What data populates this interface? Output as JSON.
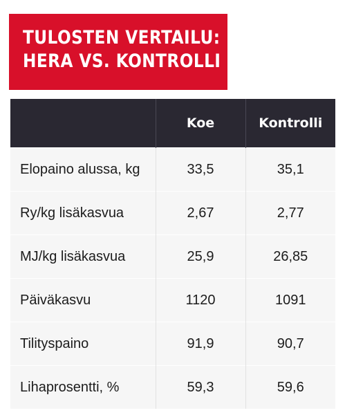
{
  "title": {
    "line1": "TULOSTEN VERTAILU:",
    "line2": "HERA VS. KONTROLLI"
  },
  "table": {
    "headers": [
      "",
      "Koe",
      "Kontrolli"
    ],
    "rows": [
      {
        "label": "Elopaino alussa, kg",
        "koe": "33,5",
        "kontrolli": "35,1"
      },
      {
        "label": "Ry/kg lisäkasvua",
        "koe": "2,67",
        "kontrolli": "2,77"
      },
      {
        "label": "MJ/kg lisäkasvua",
        "koe": "25,9",
        "kontrolli": "26,85"
      },
      {
        "label": "Päiväkasvu",
        "koe": "1120",
        "kontrolli": "1091"
      },
      {
        "label": "Tilityspaino",
        "koe": "91,9",
        "kontrolli": "90,7"
      },
      {
        "label": "Lihaprosentti, %",
        "koe": "59,3",
        "kontrolli": "59,6"
      }
    ]
  },
  "colors": {
    "title_background": "#d8102a",
    "header_background": "#2a2832",
    "row_background": "#f6f6f6"
  }
}
